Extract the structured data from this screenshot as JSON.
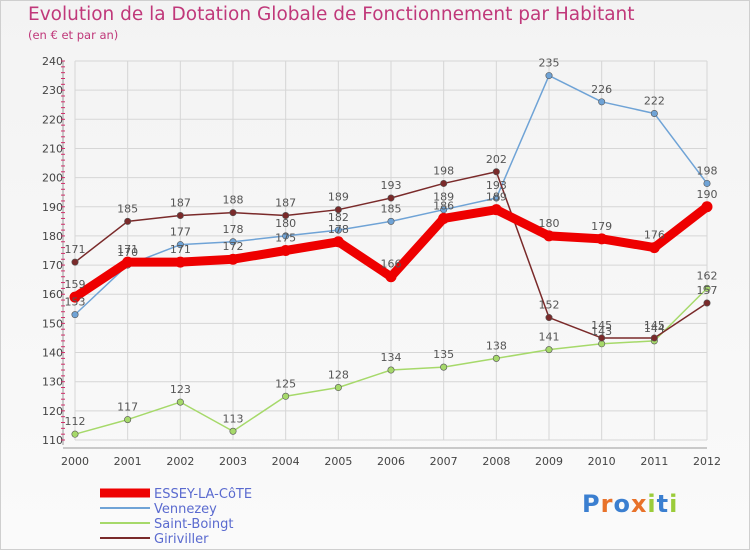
{
  "header": {
    "title": "Evolution de la Dotation Globale de Fonctionnement par Habitant",
    "subtitle": "(en € et par an)"
  },
  "logo": {
    "text": "Proxiti"
  },
  "chart_data": {
    "type": "line",
    "title": "Evolution de la Dotation Globale de Fonctionnement par Habitant",
    "subtitle": "(en € et par an)",
    "xlabel": "",
    "ylabel": "",
    "ylim": [
      110,
      240
    ],
    "yticks": [
      110,
      120,
      130,
      140,
      150,
      160,
      170,
      180,
      190,
      200,
      210,
      220,
      230,
      240
    ],
    "x": [
      "2000",
      "2001",
      "2002",
      "2003",
      "2004",
      "2005",
      "2006",
      "2007",
      "2008",
      "2009",
      "2010",
      "2011",
      "2012"
    ],
    "grid": true,
    "legend_position": "bottom-left",
    "series": [
      {
        "name": "ESSEY-LA-CôTE",
        "color": "#ee0000",
        "emphasis": true,
        "values": [
          159,
          171,
          171,
          172,
          175,
          178,
          166,
          186,
          189,
          180,
          179,
          176,
          190
        ]
      },
      {
        "name": "Vennezey",
        "color": "#6fa3d6",
        "values": [
          153,
          170,
          177,
          178,
          180,
          182,
          185,
          189,
          193,
          235,
          226,
          222,
          198
        ]
      },
      {
        "name": "Saint-Boingt",
        "color": "#a6d96a",
        "values": [
          112,
          117,
          123,
          113,
          125,
          128,
          134,
          135,
          138,
          141,
          143,
          144,
          162
        ]
      },
      {
        "name": "Giriviller",
        "color": "#7a2a2a",
        "values": [
          171,
          185,
          187,
          188,
          187,
          189,
          193,
          198,
          202,
          152,
          145,
          145,
          157
        ]
      }
    ]
  }
}
